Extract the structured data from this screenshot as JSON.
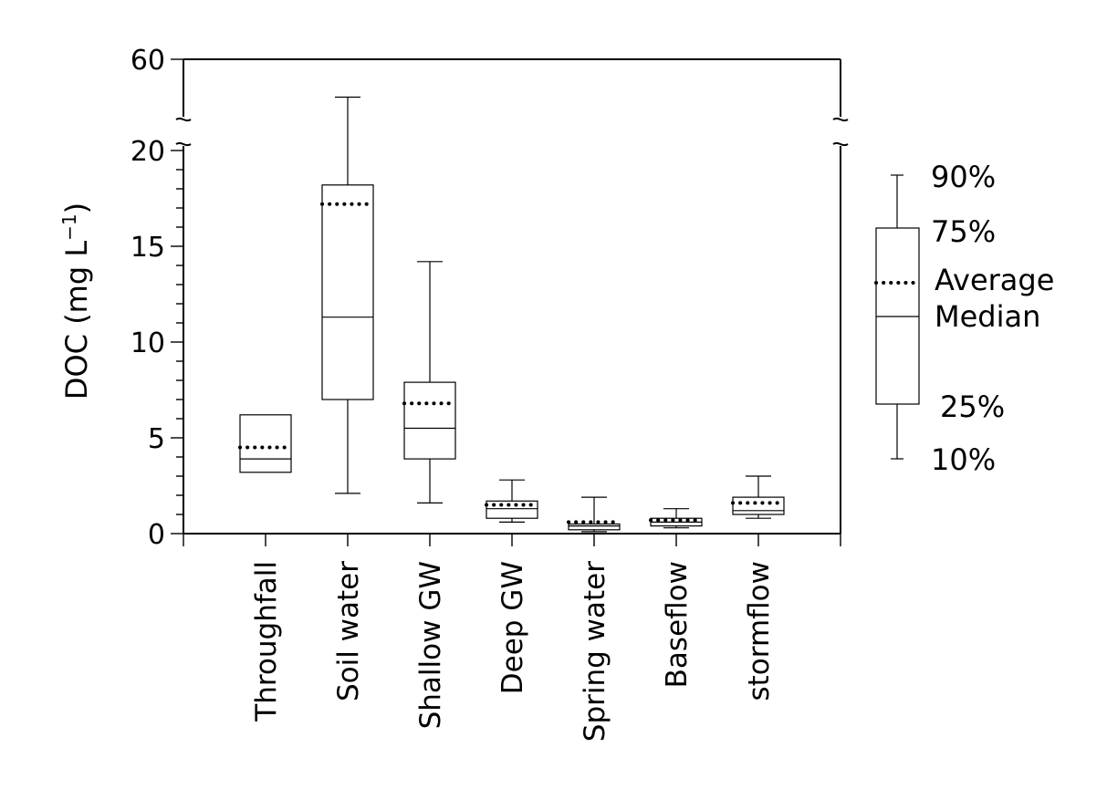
{
  "chart_data": {
    "type": "box",
    "ylabel": "DOC (mg L",
    "ylabel_sup": "−1",
    "ylabel_close": ")",
    "y_axis": {
      "lower_range": [
        0,
        20
      ],
      "upper_range": [
        20,
        60
      ],
      "broken": true,
      "ticks": [
        "0",
        "5",
        "10",
        "15",
        "20",
        "60"
      ]
    },
    "categories": [
      "Throughfall",
      "Soil water",
      "Shallow GW",
      "Deep GW",
      "Spring water",
      "Baseflow",
      "stormflow"
    ],
    "stats": [
      {
        "p10": 3.2,
        "p25": 3.2,
        "median": 3.9,
        "average": 4.5,
        "p75": 6.2,
        "p90": 6.2
      },
      {
        "p10": 2.1,
        "p25": 7.0,
        "median": 11.3,
        "average": 17.2,
        "p75": 18.2,
        "p90": 40.0
      },
      {
        "p10": 1.6,
        "p25": 3.9,
        "median": 5.5,
        "average": 6.8,
        "p75": 7.9,
        "p90": 14.2
      },
      {
        "p10": 0.6,
        "p25": 0.8,
        "median": 1.3,
        "average": 1.5,
        "p75": 1.7,
        "p90": 2.8
      },
      {
        "p10": 0.1,
        "p25": 0.2,
        "median": 0.4,
        "average": 0.6,
        "p75": 0.5,
        "p90": 1.9
      },
      {
        "p10": 0.3,
        "p25": 0.4,
        "median": 0.6,
        "average": 0.7,
        "p75": 0.8,
        "p90": 1.3
      },
      {
        "p10": 0.8,
        "p25": 1.0,
        "median": 1.2,
        "average": 1.6,
        "p75": 1.9,
        "p90": 3.0
      }
    ],
    "legend": {
      "p90": "90%",
      "p75": "75%",
      "average": "Average",
      "median": "Median",
      "p25": "25%",
      "p10": "10%"
    }
  }
}
